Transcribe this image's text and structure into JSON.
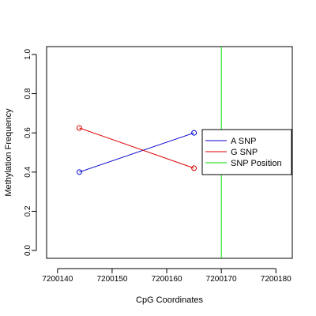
{
  "chart_data": {
    "type": "line",
    "xlabel": "CpG Coordinates",
    "ylabel": "Methylation Frequency",
    "xlim": [
      7200138,
      7200183
    ],
    "ylim": [
      -0.04,
      1.04
    ],
    "x_ticks": [
      7200140,
      7200150,
      7200160,
      7200170,
      7200180
    ],
    "y_ticks": [
      0.0,
      0.2,
      0.4,
      0.6,
      0.8,
      1.0
    ],
    "x_tick_labels": [
      "7200140",
      "7200150",
      "7200160",
      "7200170",
      "7200180"
    ],
    "y_tick_labels": [
      "0.0",
      "0.2",
      "0.4",
      "0.6",
      "0.8",
      "1.0"
    ],
    "grid": false,
    "legend_position": "right",
    "series": [
      {
        "name": "A SNP",
        "color": "#0000cc",
        "x": [
          7200144,
          7200165
        ],
        "y": [
          0.4,
          0.6
        ]
      },
      {
        "name": "G SNP",
        "color": "#dd0000",
        "x": [
          7200144,
          7200165
        ],
        "y": [
          0.625,
          0.42
        ]
      }
    ],
    "vlines": [
      {
        "name": "SNP Position",
        "color": "#00dd00",
        "x": 7200170
      }
    ]
  }
}
